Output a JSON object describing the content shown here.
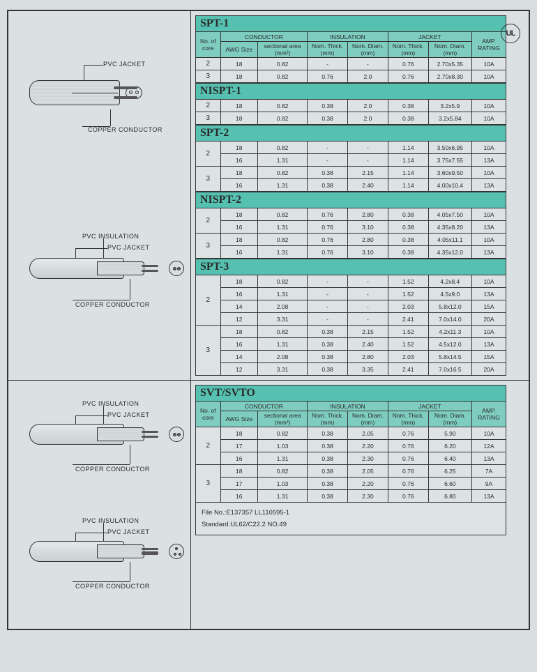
{
  "certMark": "UL",
  "labels": {
    "pvcJacket": "PVC JACKET",
    "pvcInsulation": "PVC INSULATION",
    "copperConductor": "COPPER CONDUCTOR"
  },
  "groupHeaders": {
    "conductor": "CONDUCTOR",
    "insulation": "INSULATION",
    "jacket": "JACKET",
    "amp": "AMP.\nRATING"
  },
  "colHeaders": {
    "core": "No. of\ncore",
    "awg": "AWG Size",
    "area": "sectional area\n(mm²)",
    "ithick": "Nom. Thick.\n(mm)",
    "idiam": "Nom. Diam.\n(mm)",
    "jthick": "Nom. Thick.\n(mm)",
    "jdiam": "Nom. Diam.\n(mm)"
  },
  "sections": [
    {
      "title": "SPT-1",
      "showHeader": true,
      "rows": [
        {
          "core": "2",
          "awg": "18",
          "area": "0.82",
          "ithick": "-",
          "idiam": "-",
          "jthick": "0.76",
          "jdiam": "2.70x5.35",
          "amp": "10A"
        },
        {
          "core": "3",
          "awg": "18",
          "area": "0.82",
          "ithick": "0.76",
          "idiam": "2.0",
          "jthick": "0.76",
          "jdiam": "2.70x8.30",
          "amp": "10A"
        }
      ]
    },
    {
      "title": "NISPT-1",
      "showHeader": false,
      "rows": [
        {
          "core": "2",
          "awg": "18",
          "area": "0.82",
          "ithick": "0.38",
          "idiam": "2.0",
          "jthick": "0.38",
          "jdiam": "3.2x5.9",
          "amp": "10A"
        },
        {
          "core": "3",
          "awg": "18",
          "area": "0.82",
          "ithick": "0.38",
          "idiam": "2.0",
          "jthick": "0.38",
          "jdiam": "3.2x5.84",
          "amp": "10A"
        }
      ]
    },
    {
      "title": "SPT-2",
      "showHeader": false,
      "rows": [
        {
          "core": "2",
          "coreSpan": 2,
          "awg": "18",
          "area": "0.82",
          "ithick": "-",
          "idiam": "-",
          "jthick": "1.14",
          "jdiam": "3.50x6.95",
          "amp": "10A"
        },
        {
          "awg": "16",
          "area": "1.31",
          "ithick": "-",
          "idiam": "-",
          "jthick": "1.14",
          "jdiam": "3.75x7.55",
          "amp": "13A"
        },
        {
          "core": "3",
          "coreSpan": 2,
          "awg": "18",
          "area": "0.82",
          "ithick": "0.38",
          "idiam": "2.15",
          "jthick": "1.14",
          "jdiam": "3.60x9.50",
          "amp": "10A"
        },
        {
          "awg": "16",
          "area": "1.31",
          "ithick": "0.38",
          "idiam": "2.40",
          "jthick": "1.14",
          "jdiam": "4.00x10.4",
          "amp": "13A"
        }
      ]
    },
    {
      "title": "NISPT-2",
      "showHeader": false,
      "rows": [
        {
          "core": "2",
          "coreSpan": 2,
          "awg": "18",
          "area": "0.82",
          "ithick": "0.76",
          "idiam": "2.80",
          "jthick": "0.38",
          "jdiam": "4.05x7.50",
          "amp": "10A"
        },
        {
          "awg": "16",
          "area": "1.31",
          "ithick": "0.76",
          "idiam": "3.10",
          "jthick": "0.38",
          "jdiam": "4.35x8.20",
          "amp": "13A"
        },
        {
          "core": "3",
          "coreSpan": 2,
          "awg": "18",
          "area": "0.82",
          "ithick": "0.76",
          "idiam": "2.80",
          "jthick": "0.38",
          "jdiam": "4.05x11.1",
          "amp": "10A"
        },
        {
          "awg": "16",
          "area": "1.31",
          "ithick": "0.76",
          "idiam": "3.10",
          "jthick": "0.38",
          "jdiam": "4.35x12.0",
          "amp": "13A"
        }
      ]
    },
    {
      "title": "SPT-3",
      "showHeader": false,
      "rows": [
        {
          "core": "2",
          "coreSpan": 4,
          "awg": "18",
          "area": "0.82",
          "ithick": "-",
          "idiam": "-",
          "jthick": "1.52",
          "jdiam": "4.2x8.4",
          "amp": "10A"
        },
        {
          "awg": "16",
          "area": "1.31",
          "ithick": "-",
          "idiam": "-",
          "jthick": "1.52",
          "jdiam": "4.5x9.0",
          "amp": "13A"
        },
        {
          "awg": "14",
          "area": "2.08",
          "ithick": "-",
          "idiam": "-",
          "jthick": "2.03",
          "jdiam": "5.8x12.0",
          "amp": "15A"
        },
        {
          "awg": "12",
          "area": "3.31",
          "ithick": "-",
          "idiam": "-",
          "jthick": "2.41",
          "jdiam": "7.0x14.0",
          "amp": "20A"
        },
        {
          "core": "3",
          "coreSpan": 4,
          "awg": "18",
          "area": "0.82",
          "ithick": "0.38",
          "idiam": "2.15",
          "jthick": "1.52",
          "jdiam": "4.2x11.3",
          "amp": "10A"
        },
        {
          "awg": "16",
          "area": "1.31",
          "ithick": "0.38",
          "idiam": "2.40",
          "jthick": "1.52",
          "jdiam": "4.5x12.0",
          "amp": "13A"
        },
        {
          "awg": "14",
          "area": "2.08",
          "ithick": "0.38",
          "idiam": "2.80",
          "jthick": "2.03",
          "jdiam": "5.8x14.5",
          "amp": "15A"
        },
        {
          "awg": "12",
          "area": "3.31",
          "ithick": "0.38",
          "idiam": "3.35",
          "jthick": "2.41",
          "jdiam": "7.0x16.5",
          "amp": "20A"
        }
      ]
    }
  ],
  "sections2": [
    {
      "title": "SVT/SVTO",
      "showHeader": true,
      "rows": [
        {
          "core": "2",
          "coreSpan": 3,
          "awg": "18",
          "area": "0.82",
          "ithick": "0.38",
          "idiam": "2.05",
          "jthick": "0.76",
          "jdiam": "5.90",
          "amp": "10A"
        },
        {
          "awg": "17",
          "area": "1.03",
          "ithick": "0.38",
          "idiam": "2.20",
          "jthick": "0.76",
          "jdiam": "6.20",
          "amp": "12A"
        },
        {
          "awg": "16",
          "area": "1.31",
          "ithick": "0.38",
          "idiam": "2.30",
          "jthick": "0.76",
          "jdiam": "6.40",
          "amp": "13A"
        },
        {
          "core": "3",
          "coreSpan": 3,
          "awg": "18",
          "area": "0.82",
          "ithick": "0.38",
          "idiam": "2.05",
          "jthick": "0.76",
          "jdiam": "6.25",
          "amp": "7A"
        },
        {
          "awg": "17",
          "area": "1.03",
          "ithick": "0.38",
          "idiam": "2.20",
          "jthick": "0.76",
          "jdiam": "6.60",
          "amp": "9A"
        },
        {
          "awg": "16",
          "area": "1.31",
          "ithick": "0.38",
          "idiam": "2.30",
          "jthick": "0.76",
          "jdiam": "6.80",
          "amp": "13A"
        }
      ]
    }
  ],
  "footer": {
    "line1": "File No.:E137357    LL110595-1",
    "line2": "Standard:UL62/C22.2  NO.49"
  },
  "colors": {
    "header": "#7fcdc1",
    "title": "#56c1b1",
    "bg": "#dde3e5",
    "border": "#333333"
  }
}
